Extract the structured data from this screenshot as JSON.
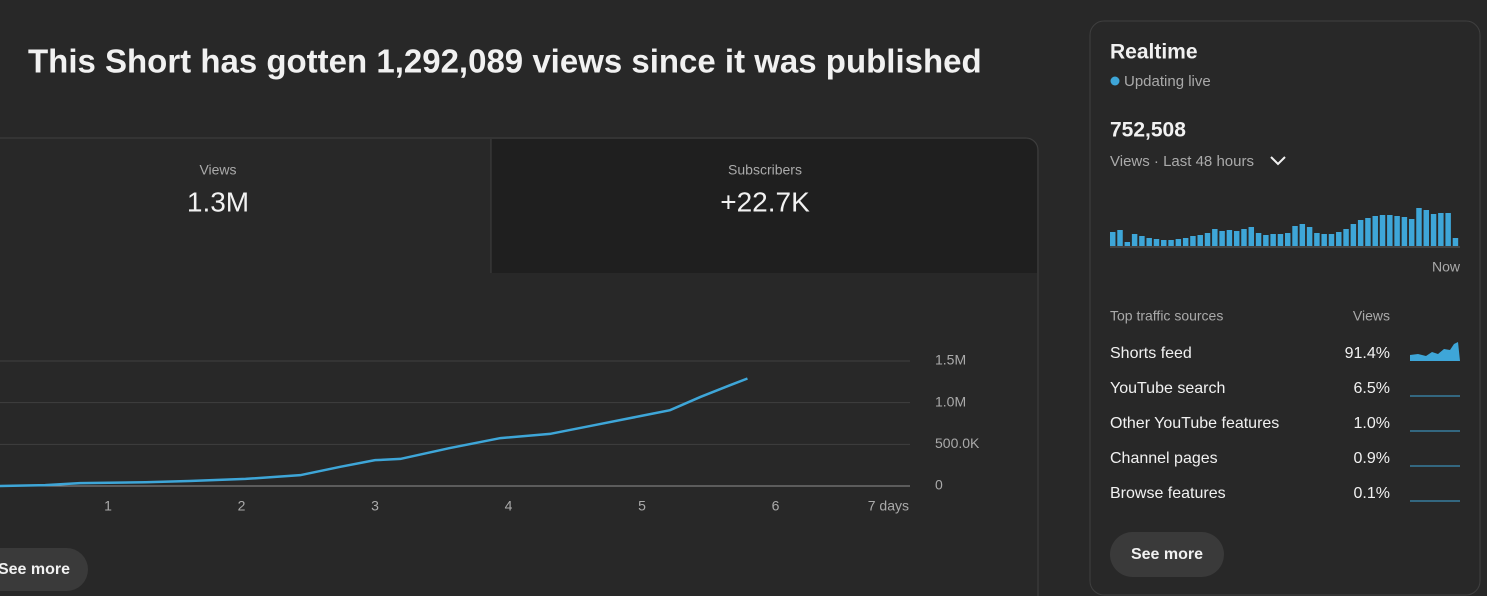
{
  "header": {
    "title": "This Short has gotten 1,292,089 views since it was published"
  },
  "tabs": [
    {
      "label": "Views",
      "value": "1.3M"
    },
    {
      "label": "Subscribers",
      "value": "+22.7K"
    }
  ],
  "chart": {
    "type": "line",
    "color": "#3ea6d8",
    "x": [
      0.19,
      0.53,
      0.79,
      1.28,
      1.61,
      2.03,
      2.44,
      2.74,
      3.0,
      3.19,
      3.56,
      3.94,
      4.31,
      4.69,
      4.99,
      5.21,
      5.44,
      5.66,
      5.79
    ],
    "values": [
      0,
      10000,
      35000,
      45000,
      60000,
      85000,
      130000,
      230000,
      310000,
      325000,
      455000,
      575000,
      625000,
      745000,
      840000,
      910000,
      1070000,
      1210000,
      1290000
    ],
    "xlim": [
      0,
      7
    ],
    "xticks": [
      1,
      2,
      3,
      4,
      5,
      6,
      {
        "value": 7,
        "label": "7 days"
      }
    ],
    "ylim": [
      0,
      1500000
    ],
    "yticks": [
      0,
      {
        "value": 500000,
        "label": "500.0K"
      },
      {
        "value": 1000000,
        "label": "1.0M"
      },
      {
        "value": 1500000,
        "label": "1.5M"
      }
    ],
    "grid": true
  },
  "see_more": "See more",
  "realtime": {
    "title": "Realtime",
    "status": "Updating live",
    "total": "752,508",
    "period": "Views · Last 48 hours",
    "chart": {
      "type": "bar",
      "color": "#3ea6d8",
      "values": [
        14,
        16,
        4,
        12,
        10,
        8,
        7,
        6,
        6,
        7,
        8,
        10,
        11,
        13,
        17,
        15,
        16,
        15,
        17,
        19,
        13,
        11,
        12,
        12,
        13,
        20,
        22,
        19,
        13,
        12,
        12,
        14,
        17,
        22,
        26,
        28,
        30,
        31,
        31,
        30,
        29,
        27,
        38,
        36,
        32,
        33,
        33,
        8
      ]
    },
    "now_label": "Now",
    "table": {
      "header": [
        "Top traffic sources",
        "Views"
      ],
      "rows": [
        [
          "Shorts feed",
          "91.4%"
        ],
        [
          "YouTube search",
          "6.5%"
        ],
        [
          "Other YouTube features",
          "1.0%"
        ],
        [
          "Channel pages",
          "0.9%"
        ],
        [
          "Browse features",
          "0.1%"
        ]
      ]
    },
    "button": "See more"
  }
}
